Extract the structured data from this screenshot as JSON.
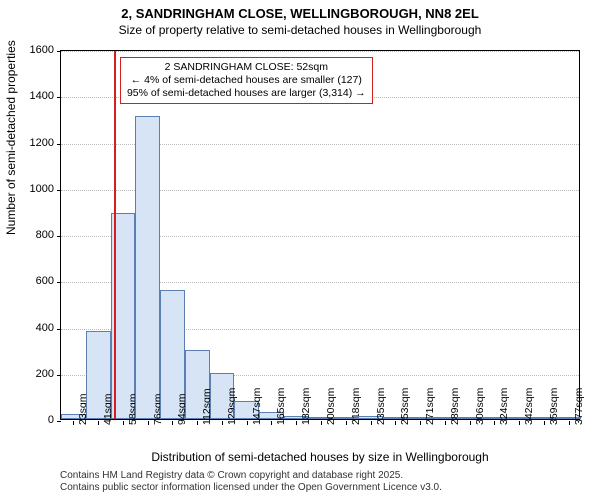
{
  "titles": {
    "line1": "2, SANDRINGHAM CLOSE, WELLINGBOROUGH, NN8 2EL",
    "line2": "Size of property relative to semi-detached houses in Wellingborough"
  },
  "axes": {
    "ylabel": "Number of semi-detached properties",
    "xlabel": "Distribution of semi-detached houses by size in Wellingborough",
    "ylabel_fontsize": 12,
    "xlabel_fontsize": 12,
    "tick_fontsize": 11
  },
  "chart": {
    "type": "histogram",
    "ylim": [
      0,
      1600
    ],
    "ytick_step": 200,
    "background_color": "#ffffff",
    "grid_color": "#bbbbbb",
    "axis_color": "#000000",
    "bar_fill": "#d6e4f5",
    "bar_stroke": "#5a7fb0",
    "bar_stroke_width": 1,
    "categories": [
      "23sqm",
      "41sqm",
      "58sqm",
      "76sqm",
      "94sqm",
      "112sqm",
      "129sqm",
      "147sqm",
      "165sqm",
      "182sqm",
      "200sqm",
      "218sqm",
      "235sqm",
      "253sqm",
      "271sqm",
      "289sqm",
      "306sqm",
      "324sqm",
      "342sqm",
      "359sqm",
      "377sqm"
    ],
    "values": [
      20,
      380,
      890,
      1310,
      560,
      300,
      200,
      80,
      30,
      15,
      10,
      5,
      15,
      5,
      3,
      2,
      2,
      1,
      1,
      1,
      0
    ],
    "bar_width_ratio": 1.0
  },
  "reference": {
    "value_sqm": 52,
    "line_color": "#d02020",
    "box_border": "#d02020",
    "box_bg": "#ffffff",
    "lines": {
      "l1": "2 SANDRINGHAM CLOSE: 52sqm",
      "l2": "← 4% of semi-detached houses are smaller (127)",
      "l3": "95% of semi-detached houses are larger (3,314) →"
    }
  },
  "footnote": {
    "l1": "Contains HM Land Registry data © Crown copyright and database right 2025.",
    "l2": "Contains public sector information licensed under the Open Government Licence v3.0."
  }
}
